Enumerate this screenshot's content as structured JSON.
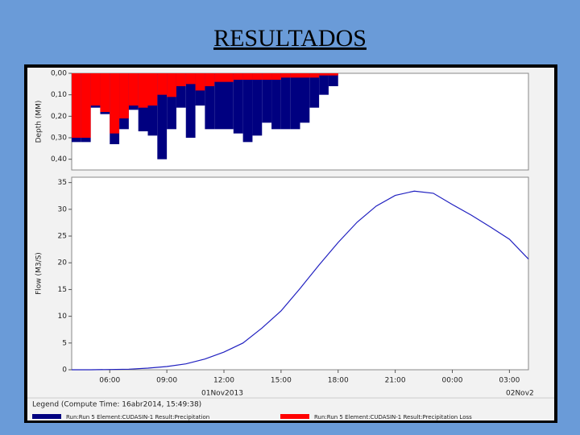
{
  "title": "RESULTADOS",
  "legend": {
    "title": "Legend (Compute Time: 16abr2014, 15:49:38)"
  },
  "date_labels": [
    "01Nov2013",
    "02Nov2"
  ],
  "chart_data": [
    {
      "type": "bar",
      "y_label": "Depth (MM)",
      "inverted": true,
      "grid": false,
      "x": [
        4,
        4.5,
        5,
        5.5,
        6,
        6.5,
        7,
        7.5,
        8,
        8.5,
        9,
        9.5,
        10,
        10.5,
        11,
        11.5,
        12,
        12.5,
        13,
        13.5,
        14,
        14.5,
        15,
        15.5,
        16,
        16.5,
        17,
        17.5
      ],
      "xlim": [
        4,
        28
      ],
      "ylim": [
        0,
        0.45
      ],
      "yticks": [
        {
          "value": 0,
          "label": "0,00"
        },
        {
          "value": 0.1,
          "label": "0,10"
        },
        {
          "value": 0.2,
          "label": "0,20"
        },
        {
          "value": 0.3,
          "label": "0,30"
        },
        {
          "value": 0.4,
          "label": "0,40"
        }
      ],
      "series": [
        {
          "name": "Run:Run 5 Element:CUDASIN-1 Result:Precipitation",
          "color": "#000080",
          "values": [
            0.32,
            0.32,
            0.16,
            0.19,
            0.33,
            0.26,
            0.17,
            0.27,
            0.29,
            0.4,
            0.26,
            0.16,
            0.3,
            0.15,
            0.26,
            0.26,
            0.26,
            0.28,
            0.32,
            0.29,
            0.23,
            0.26,
            0.26,
            0.26,
            0.23,
            0.16,
            0.1,
            0.06
          ]
        },
        {
          "name": "Run:Run 5 Element:CUDASIN-1 Result:Precipitation Loss",
          "color": "#ff0000",
          "values": [
            0.3,
            0.3,
            0.15,
            0.18,
            0.28,
            0.21,
            0.15,
            0.16,
            0.15,
            0.1,
            0.11,
            0.06,
            0.05,
            0.08,
            0.06,
            0.04,
            0.04,
            0.03,
            0.03,
            0.03,
            0.03,
            0.03,
            0.02,
            0.02,
            0.02,
            0.02,
            0.01,
            0.01
          ]
        }
      ]
    },
    {
      "type": "line",
      "y_label": "Flow (M3/S)",
      "grid": false,
      "color": "#2020c0",
      "x": [
        4,
        5,
        6,
        7,
        8,
        9,
        10,
        11,
        12,
        13,
        14,
        15,
        16,
        17,
        18,
        19,
        20,
        21,
        22,
        23,
        24,
        25,
        26,
        27,
        28
      ],
      "values": [
        0,
        0,
        0.05,
        0.1,
        0.3,
        0.6,
        1.1,
        2.0,
        3.3,
        5.0,
        7.8,
        11.0,
        15.2,
        19.6,
        23.8,
        27.6,
        30.6,
        32.6,
        33.4,
        33.0,
        30.9,
        28.9,
        26.7,
        24.4,
        20.7
      ],
      "xlim": [
        4,
        28
      ],
      "xticks": [
        {
          "value": 6,
          "label": "06:00"
        },
        {
          "value": 9,
          "label": "09:00"
        },
        {
          "value": 12,
          "label": "12:00"
        },
        {
          "value": 15,
          "label": "15:00"
        },
        {
          "value": 18,
          "label": "18:00"
        },
        {
          "value": 21,
          "label": "21:00"
        },
        {
          "value": 24,
          "label": "00:00"
        },
        {
          "value": 27,
          "label": "03:00"
        }
      ],
      "ylim": [
        0,
        36
      ],
      "yticks": [
        0,
        5,
        10,
        15,
        20,
        25,
        30,
        35
      ]
    }
  ]
}
